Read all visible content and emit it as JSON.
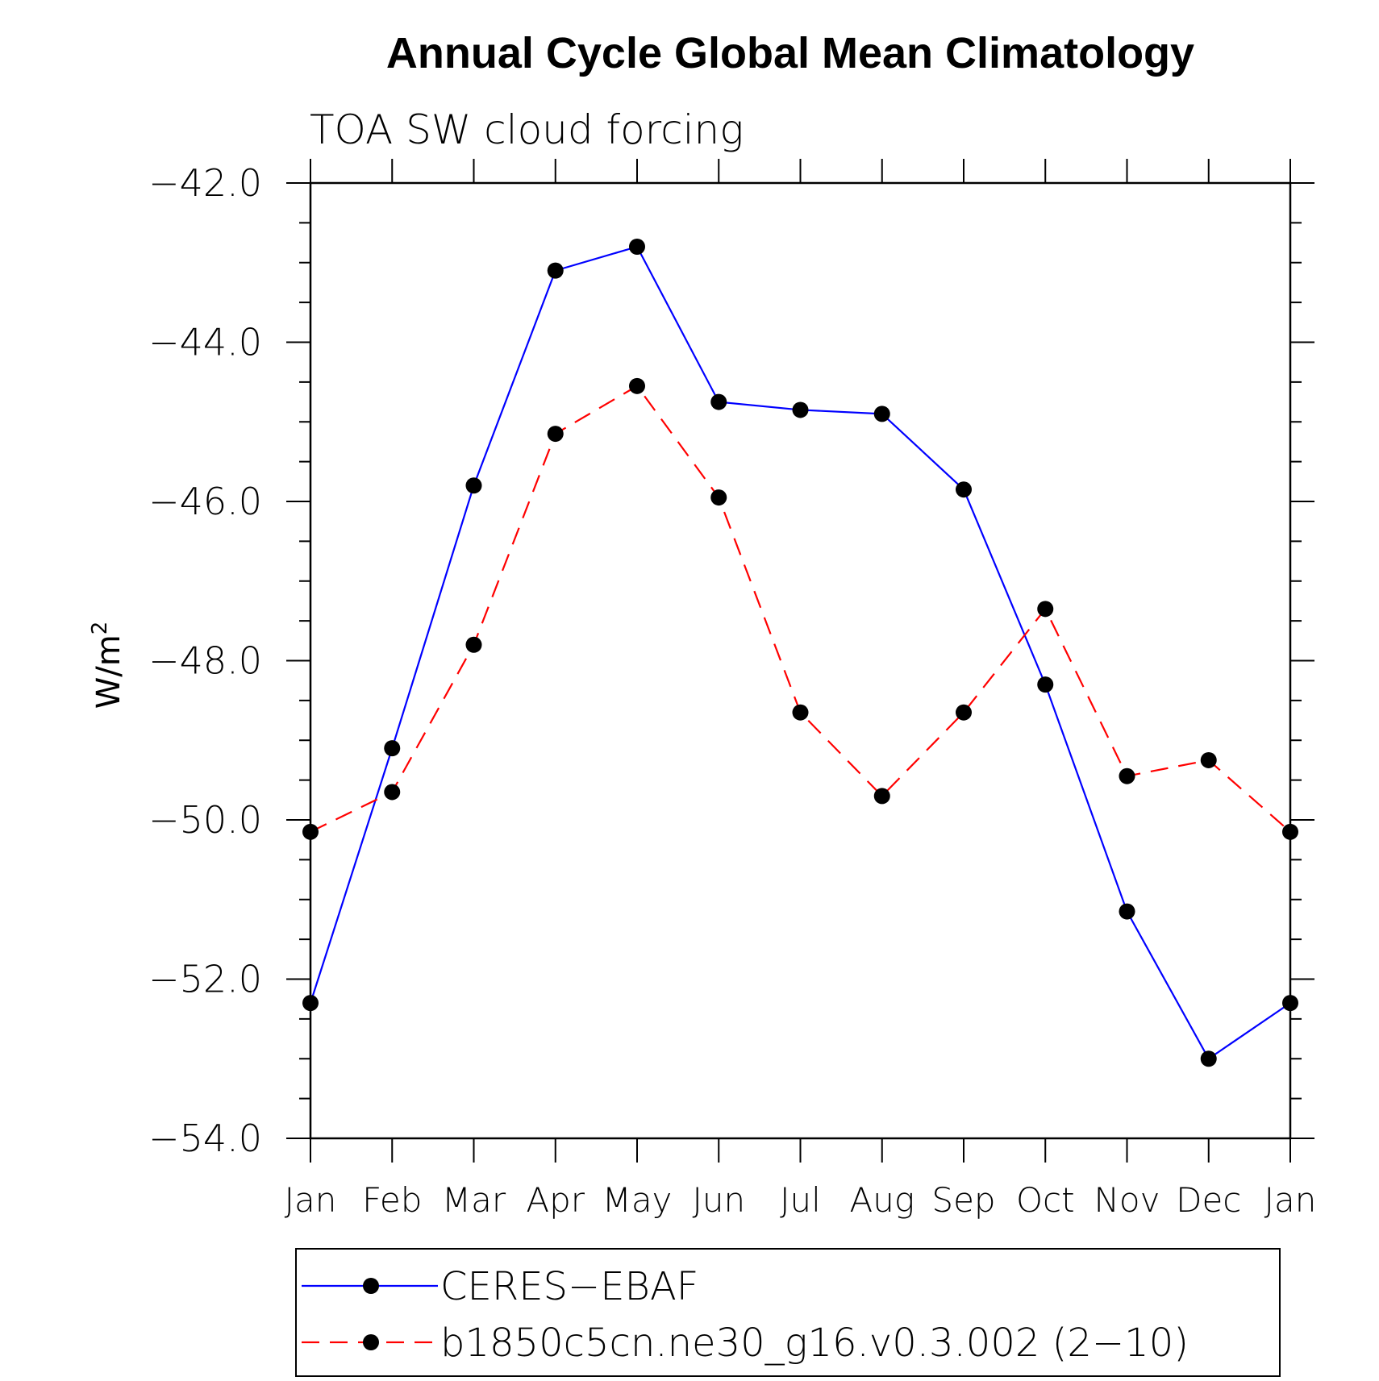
{
  "chart_data": {
    "type": "line",
    "title": "Annual Cycle Global Mean Climatology",
    "subtitle": "TOA SW cloud forcing",
    "ylabel": "W/m",
    "ylabel_superscript": "2",
    "xlabel": "",
    "ylim": [
      -54.0,
      -42.0
    ],
    "yticks": [
      -42.0,
      -44.0,
      -46.0,
      -48.0,
      -50.0,
      -52.0,
      -54.0
    ],
    "ytick_labels": [
      "−42.0",
      "−44.0",
      "−46.0",
      "−48.0",
      "−50.0",
      "−52.0",
      "−54.0"
    ],
    "categories": [
      "Jan",
      "Feb",
      "Mar",
      "Apr",
      "May",
      "Jun",
      "Jul",
      "Aug",
      "Sep",
      "Oct",
      "Nov",
      "Dec",
      "Jan"
    ],
    "series": [
      {
        "name": "CERES−EBAF",
        "color": "#0000ff",
        "dash": "solid",
        "values": [
          -52.3,
          -49.1,
          -45.8,
          -43.1,
          -42.8,
          -44.75,
          -44.85,
          -44.9,
          -45.85,
          -48.3,
          -51.15,
          -53.0,
          -52.3
        ]
      },
      {
        "name": "b1850c5cn.ne30_g16.v0.3.002 (2−10)",
        "color": "#ff0000",
        "dash": "dashed",
        "values": [
          -50.15,
          -49.65,
          -47.8,
          -45.15,
          -44.55,
          -45.95,
          -48.65,
          -49.7,
          -48.65,
          -47.35,
          -49.45,
          -49.25,
          -50.15
        ]
      }
    ],
    "legend_position": "bottom"
  }
}
